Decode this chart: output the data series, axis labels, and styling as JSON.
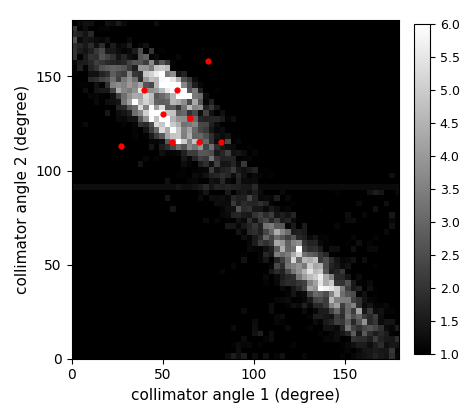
{
  "title": "",
  "xlabel": "collimator angle 1 (degree)",
  "ylabel": "collimator angle 2 (degree)",
  "xlim": [
    0,
    180
  ],
  "ylim": [
    0,
    180
  ],
  "xticks": [
    0,
    50,
    100,
    150
  ],
  "yticks": [
    0,
    50,
    100,
    150
  ],
  "colorbar_ticks": [
    1,
    1.5,
    2,
    2.5,
    3,
    3.5,
    4,
    4.5,
    5,
    5.5,
    6
  ],
  "vmin": 1,
  "vmax": 6,
  "red_points": [
    [
      27,
      113
    ],
    [
      40,
      143
    ],
    [
      50,
      130
    ],
    [
      55,
      115
    ],
    [
      58,
      143
    ],
    [
      65,
      128
    ],
    [
      70,
      115
    ],
    [
      75,
      158
    ],
    [
      82,
      115
    ]
  ],
  "figsize": [
    4.74,
    4.18
  ],
  "dpi": 100,
  "bin_size": 3
}
